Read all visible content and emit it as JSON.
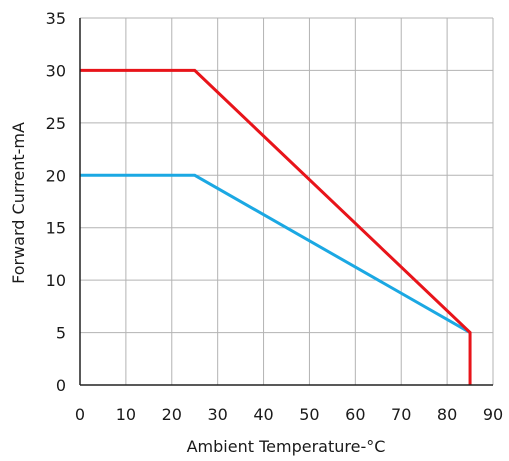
{
  "chart_data": {
    "type": "line",
    "title": "",
    "xlabel": "Ambient Temperature-°C",
    "ylabel": "Forward Current-mA",
    "xlim": [
      0,
      90
    ],
    "ylim": [
      0,
      35
    ],
    "xticks": [
      0,
      10,
      20,
      30,
      40,
      50,
      60,
      70,
      80,
      90
    ],
    "yticks": [
      0,
      5,
      10,
      15,
      20,
      25,
      30,
      35
    ],
    "grid": true,
    "legend": "none",
    "series": [
      {
        "color": "#e8141a",
        "points": [
          [
            0,
            30
          ],
          [
            25,
            30
          ],
          [
            85,
            5
          ],
          [
            85,
            0
          ]
        ]
      },
      {
        "color": "#1ba8e3",
        "points": [
          [
            0,
            20
          ],
          [
            25,
            20
          ],
          [
            85,
            5
          ]
        ]
      }
    ]
  }
}
